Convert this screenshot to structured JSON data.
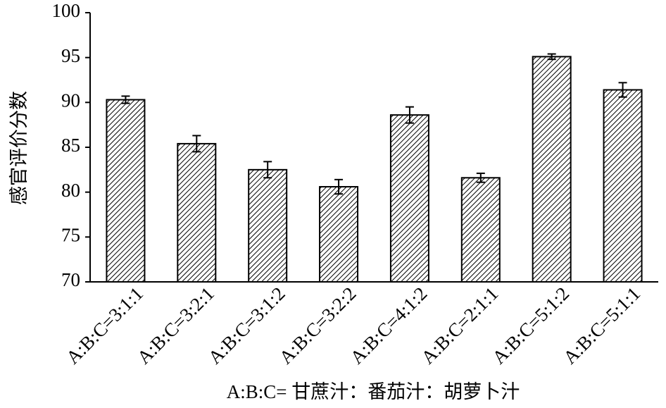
{
  "chart_data": {
    "type": "bar",
    "xlabel": "A:B:C= 甘蔗汁：番茄汁：胡萝卜汁",
    "ylabel": "感官评价分数",
    "categories": [
      "A:B:C=3:1:1",
      "A:B:C=3:2:1",
      "A:B:C=3:1:2",
      "A:B:C=3:2:2",
      "A:B:C=4:1:2",
      "A:B:C=2:1:1",
      "A:B:C=5:1:2",
      "A:B:C=5:1:1"
    ],
    "values": [
      90.3,
      85.4,
      82.5,
      80.6,
      88.6,
      81.6,
      95.1,
      91.4
    ],
    "errors": [
      0.4,
      0.9,
      0.9,
      0.8,
      0.9,
      0.5,
      0.3,
      0.8
    ],
    "color": "#000000",
    "ylim": [
      70,
      100
    ],
    "yticks": [
      70,
      75,
      80,
      85,
      90,
      95,
      100
    ]
  }
}
